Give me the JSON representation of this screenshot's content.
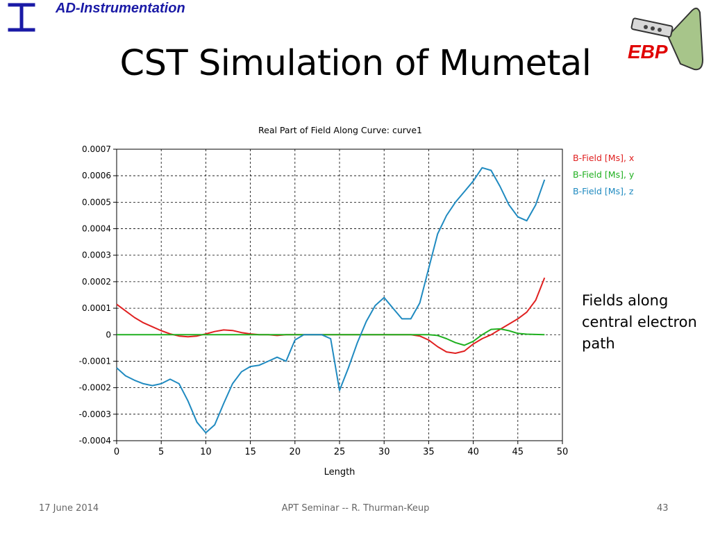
{
  "header": {
    "department": "AD-Instrumentation",
    "title": "CST Simulation of Mumetal",
    "ebp_logo_text": "EBP"
  },
  "side_note": {
    "lines": [
      "Fields along",
      "central electron",
      "path"
    ]
  },
  "footer": {
    "date": "17 June 2014",
    "center": "APT Seminar -- R. Thurman-Keup",
    "page": "43"
  },
  "colors": {
    "accent_blue": "#1a1aa6",
    "ebp_red": "#e00000",
    "series_x": "#e02020",
    "series_y": "#20b020",
    "series_z": "#1f8ac0"
  },
  "chart_data": {
    "type": "line",
    "title": "Real Part of Field Along Curve: curve1",
    "xlabel": "Length",
    "ylabel": "",
    "xlim": [
      0,
      50
    ],
    "ylim": [
      -0.0004,
      0.0007
    ],
    "xticks": [
      0,
      5,
      10,
      15,
      20,
      25,
      30,
      35,
      40,
      45,
      50
    ],
    "yticks": [
      "0.0007",
      "0.0006",
      "0.0005",
      "0.0004",
      "0.0003",
      "0.0002",
      "0.0001",
      "0",
      "-0.0001",
      "-0.0002",
      "-0.0003",
      "-0.0004"
    ],
    "grid": true,
    "legend": "right",
    "series": [
      {
        "name": "B-Field [Ms], x",
        "color": "#e02020",
        "points": [
          [
            0,
            0.000115
          ],
          [
            1,
            9e-05
          ],
          [
            2,
            6.5e-05
          ],
          [
            3,
            4.5e-05
          ],
          [
            4,
            3e-05
          ],
          [
            5,
            1.5e-05
          ],
          [
            6,
            3e-06
          ],
          [
            7,
            -5e-06
          ],
          [
            8,
            -8e-06
          ],
          [
            9,
            -5e-06
          ],
          [
            10,
            3e-06
          ],
          [
            11,
            1.2e-05
          ],
          [
            12,
            1.8e-05
          ],
          [
            13,
            1.6e-05
          ],
          [
            14,
            8e-06
          ],
          [
            15,
            3e-06
          ],
          [
            16,
            0
          ],
          [
            17,
            0
          ],
          [
            18,
            -3e-06
          ],
          [
            19,
            0
          ],
          [
            20,
            0
          ],
          [
            22,
            0
          ],
          [
            25,
            0
          ],
          [
            28,
            0
          ],
          [
            30,
            0
          ],
          [
            33,
            0
          ],
          [
            34,
            -5e-06
          ],
          [
            35,
            -2e-05
          ],
          [
            36,
            -4.5e-05
          ],
          [
            37,
            -6.5e-05
          ],
          [
            38,
            -7e-05
          ],
          [
            39,
            -6.2e-05
          ],
          [
            40,
            -3.5e-05
          ],
          [
            41,
            -1.5e-05
          ],
          [
            42,
            0
          ],
          [
            43,
            2e-05
          ],
          [
            44,
            4e-05
          ],
          [
            45,
            6e-05
          ],
          [
            46,
            8.5e-05
          ],
          [
            47,
            0.00013
          ],
          [
            48,
            0.000215
          ]
        ]
      },
      {
        "name": "B-Field [Ms], y",
        "color": "#20b020",
        "points": [
          [
            0,
            0
          ],
          [
            10,
            0
          ],
          [
            20,
            0
          ],
          [
            30,
            0
          ],
          [
            35,
            0
          ],
          [
            36,
            -3e-06
          ],
          [
            37,
            -1.5e-05
          ],
          [
            38,
            -3e-05
          ],
          [
            39,
            -4e-05
          ],
          [
            40,
            -2.5e-05
          ],
          [
            41,
            0
          ],
          [
            42,
            2e-05
          ],
          [
            43,
            2.2e-05
          ],
          [
            44,
            1.5e-05
          ],
          [
            45,
            5e-06
          ],
          [
            46,
            2e-06
          ],
          [
            48,
            0
          ]
        ]
      },
      {
        "name": "B-Field [Ms], z",
        "color": "#1f8ac0",
        "points": [
          [
            0,
            -0.000125
          ],
          [
            1,
            -0.000155
          ],
          [
            2,
            -0.000172
          ],
          [
            3,
            -0.000185
          ],
          [
            4,
            -0.000192
          ],
          [
            5,
            -0.000185
          ],
          [
            6,
            -0.000168
          ],
          [
            7,
            -0.000185
          ],
          [
            8,
            -0.00025
          ],
          [
            9,
            -0.00033
          ],
          [
            10,
            -0.00037
          ],
          [
            11,
            -0.00034
          ],
          [
            12,
            -0.00026
          ],
          [
            13,
            -0.000185
          ],
          [
            14,
            -0.00014
          ],
          [
            15,
            -0.00012
          ],
          [
            16,
            -0.000115
          ],
          [
            17,
            -0.0001
          ],
          [
            18,
            -8.5e-05
          ],
          [
            19,
            -0.0001
          ],
          [
            20,
            -2e-05
          ],
          [
            21,
            0
          ],
          [
            22,
            0
          ],
          [
            23,
            0
          ],
          [
            24,
            -1.5e-05
          ],
          [
            25,
            -0.00021
          ],
          [
            26,
            -0.000125
          ],
          [
            27,
            -3e-05
          ],
          [
            28,
            5e-05
          ],
          [
            29,
            0.00011
          ],
          [
            30,
            0.00014
          ],
          [
            31,
            0.0001
          ],
          [
            32,
            6e-05
          ],
          [
            33,
            6e-05
          ],
          [
            34,
            0.00012
          ],
          [
            35,
            0.00025
          ],
          [
            36,
            0.00038
          ],
          [
            37,
            0.00045
          ],
          [
            38,
            0.0005
          ],
          [
            39,
            0.00054
          ],
          [
            40,
            0.00058
          ],
          [
            41,
            0.00063
          ],
          [
            42,
            0.00062
          ],
          [
            43,
            0.00056
          ],
          [
            44,
            0.00049
          ],
          [
            45,
            0.000445
          ],
          [
            46,
            0.00043
          ],
          [
            47,
            0.00049
          ],
          [
            48,
            0.000585
          ]
        ]
      }
    ]
  }
}
